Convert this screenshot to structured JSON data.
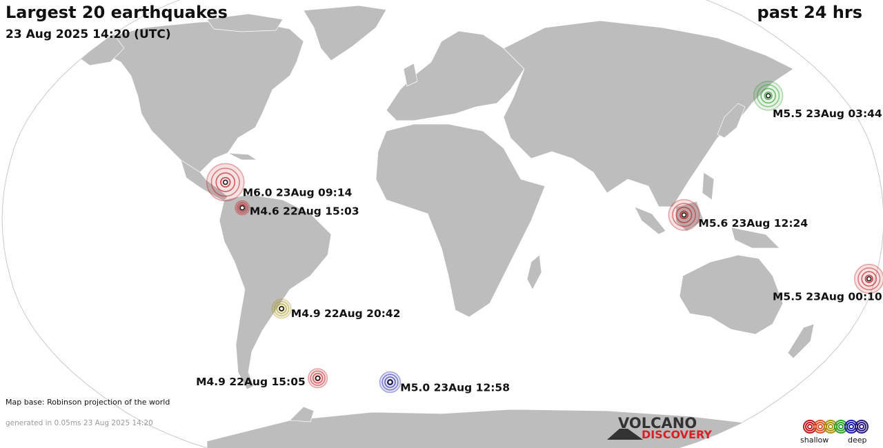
{
  "header": {
    "title": "Largest 20 earthquakes",
    "subtitle": "23 Aug 2025 14:20 (UTC)",
    "period": "past 24 hrs"
  },
  "footer": {
    "map_base": "Map base: Robinson projection of the world",
    "generated": "generated in 0.05ms 23 Aug 2025 14:20"
  },
  "logo": {
    "line1": "VOLCANO",
    "line2": "DISCOVERY"
  },
  "legend": {
    "shallow": "shallow",
    "deep": "deep",
    "colors": [
      "#c0141b",
      "#d9532a",
      "#a69316",
      "#2e9e2e",
      "#1a1aa8",
      "#2a1a7a"
    ]
  },
  "colors": {
    "ocean": "#ffffff",
    "land": "#bdbdbd",
    "border": "#ffffff",
    "outline": "#c8c8c8"
  },
  "quakes": [
    {
      "label": "M5.5 23Aug 03:44",
      "magnitude": 5.5,
      "lat": 43.5,
      "lon": 147.0,
      "depth": "deep-medium",
      "color": "#2e9e2e"
    },
    {
      "label": "M6.0 23Aug 09:14",
      "magnitude": 6.0,
      "lat": 13.0,
      "lon": -89.5,
      "depth": "shallow",
      "color": "#c0141b"
    },
    {
      "label": "M4.6 22Aug 15:03",
      "magnitude": 4.6,
      "lat": 4.0,
      "lon": -82.0,
      "depth": "shallow",
      "color": "#c0141b"
    },
    {
      "label": "M5.6 23Aug 12:24",
      "magnitude": 5.6,
      "lat": 1.5,
      "lon": 98.5,
      "depth": "shallow",
      "color": "#c0141b"
    },
    {
      "label": "M5.5 23Aug 00:10",
      "magnitude": 5.5,
      "lat": -21.0,
      "lon": 177.5,
      "depth": "shallow",
      "color": "#c0141b"
    },
    {
      "label": "M4.9 22Aug 20:42",
      "magnitude": 4.9,
      "lat": -31.5,
      "lon": -69.0,
      "depth": "intermediate",
      "color": "#a69316"
    },
    {
      "label": "M5.0 23Aug 12:58",
      "magnitude": 5.0,
      "lat": -58.0,
      "lon": -26.5,
      "depth": "very-deep",
      "color": "#1a1aa8"
    },
    {
      "label": "M4.9 22Aug 15:05",
      "magnitude": 4.9,
      "lat": -56.5,
      "lon": -62.0,
      "depth": "shallow",
      "color": "#c0141b"
    }
  ]
}
